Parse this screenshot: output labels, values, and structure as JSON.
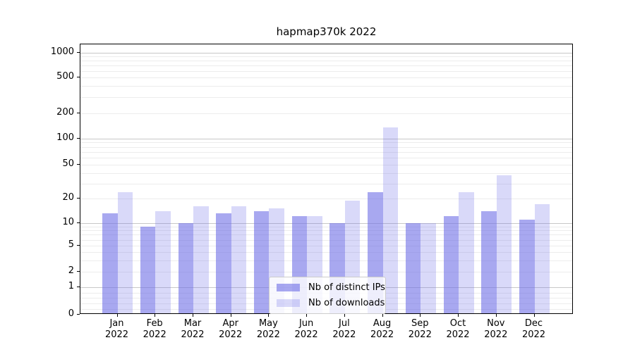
{
  "chart_data": {
    "type": "bar",
    "title": "hapmap370k 2022",
    "year": "2022",
    "categories": [
      "Jan",
      "Feb",
      "Mar",
      "Apr",
      "May",
      "Jun",
      "Jul",
      "Aug",
      "Sep",
      "Oct",
      "Nov",
      "Dec"
    ],
    "series": [
      {
        "name": "Nb of distinct IPs",
        "color": "rgba(110,110,230,0.6)",
        "color_hex_on_white": "#a8a8f0",
        "values": [
          13,
          9,
          10,
          13,
          14,
          12,
          10,
          24,
          10,
          12,
          14,
          11
        ]
      },
      {
        "name": "Nb of downloads",
        "color": "rgba(110,110,230,0.26)",
        "color_hex_on_white": "#d9d9f8",
        "values": [
          24,
          14,
          16,
          16,
          15,
          12,
          19,
          136,
          10,
          24,
          38,
          17
        ]
      }
    ],
    "xlabel": "",
    "ylabel": "",
    "yscale": "symlog",
    "y_ticks": [
      0,
      1,
      2,
      5,
      10,
      20,
      50,
      100,
      200,
      500,
      1000
    ],
    "ylim": [
      0,
      1500
    ],
    "grid": "horizontal major and log-minor gridlines",
    "legend_position": "lower center",
    "colors": {
      "major_grid": "#c8c8c8",
      "minor_grid": "#ececec",
      "axis": "#000000",
      "background": "#ffffff"
    }
  }
}
